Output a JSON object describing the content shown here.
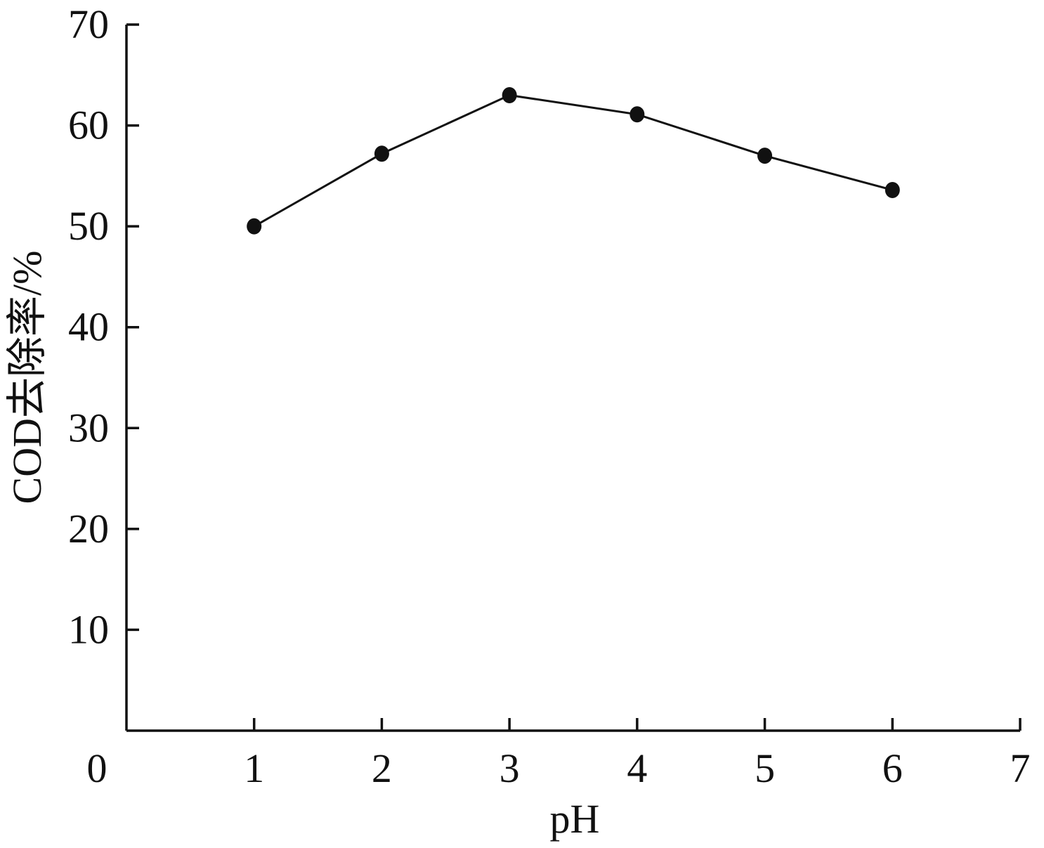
{
  "chart_data": {
    "type": "line",
    "title": "",
    "xlabel": "pH",
    "ylabel": "COD去除率/%",
    "x": [
      1,
      2,
      3,
      4,
      5,
      6
    ],
    "series": [
      {
        "values": [
          50,
          57.2,
          63,
          61.1,
          57,
          53.6
        ]
      }
    ],
    "xlim": [
      0,
      7
    ],
    "ylim": [
      0,
      70
    ],
    "xticks": [
      0,
      1,
      2,
      3,
      4,
      5,
      6,
      7
    ],
    "yticks": [
      10,
      20,
      30,
      40,
      50,
      60,
      70
    ],
    "xtick_labels": [
      "0",
      "1",
      "2",
      "3",
      "4",
      "5",
      "6",
      "7"
    ],
    "ytick_labels": [
      "10",
      "20",
      "30",
      "40",
      "50",
      "60",
      "70"
    ],
    "grid": false,
    "legend": "none",
    "colors": {
      "line": "#111111",
      "marker": "#111111",
      "axis": "#111111"
    }
  }
}
